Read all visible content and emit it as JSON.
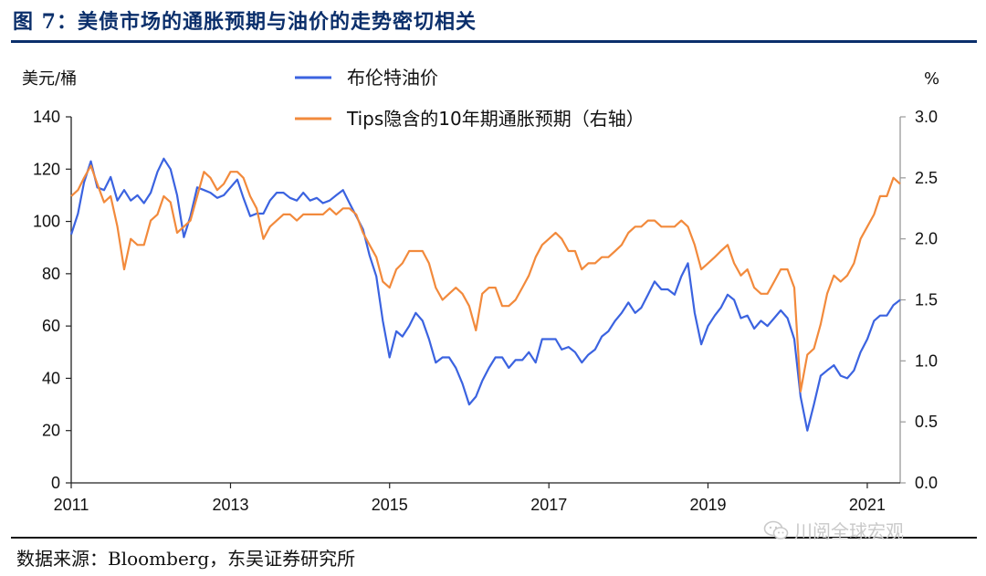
{
  "figure": {
    "title": "图 7：美债市场的通胀预期与油价的走势密切相关",
    "source": "数据来源：Bloomberg，东吴证券研究所",
    "watermark": "川阅全球宏观",
    "watermark_icon": "wechat-icon"
  },
  "chart_data": {
    "type": "line",
    "left_unit": "美元/桶",
    "right_unit": "%",
    "x_ticks": [
      "2011",
      "2013",
      "2015",
      "2017",
      "2019",
      "2021"
    ],
    "x_range": [
      "2011-01-01",
      "2021-06-01"
    ],
    "y_left": {
      "ticks": [
        "0",
        "20",
        "40",
        "60",
        "80",
        "100",
        "120",
        "140"
      ],
      "range": [
        0,
        140
      ]
    },
    "y_right": {
      "ticks": [
        "0.0",
        "0.5",
        "1.0",
        "1.5",
        "2.0",
        "2.5",
        "3.0"
      ],
      "range": [
        0,
        3.0
      ]
    },
    "grid": false,
    "legend_position": "top-center",
    "series": [
      {
        "name": "布伦特油价",
        "axis": "left",
        "color": "#3b63e0",
        "points": [
          [
            "2011-01-01",
            95
          ],
          [
            "2011-02-01",
            103
          ],
          [
            "2011-03-01",
            115
          ],
          [
            "2011-04-01",
            123
          ],
          [
            "2011-05-01",
            113
          ],
          [
            "2011-06-01",
            112
          ],
          [
            "2011-07-01",
            117
          ],
          [
            "2011-08-01",
            108
          ],
          [
            "2011-09-01",
            112
          ],
          [
            "2011-10-01",
            108
          ],
          [
            "2011-11-01",
            110
          ],
          [
            "2011-12-01",
            107
          ],
          [
            "2012-01-01",
            111
          ],
          [
            "2012-02-01",
            119
          ],
          [
            "2012-03-01",
            124
          ],
          [
            "2012-04-01",
            120
          ],
          [
            "2012-05-01",
            110
          ],
          [
            "2012-06-01",
            94
          ],
          [
            "2012-07-01",
            102
          ],
          [
            "2012-08-01",
            113
          ],
          [
            "2012-09-01",
            112
          ],
          [
            "2012-10-01",
            111
          ],
          [
            "2012-11-01",
            109
          ],
          [
            "2012-12-01",
            110
          ],
          [
            "2013-01-01",
            113
          ],
          [
            "2013-02-01",
            116
          ],
          [
            "2013-03-01",
            109
          ],
          [
            "2013-04-01",
            102
          ],
          [
            "2013-05-01",
            103
          ],
          [
            "2013-06-01",
            103
          ],
          [
            "2013-07-01",
            108
          ],
          [
            "2013-08-01",
            111
          ],
          [
            "2013-09-01",
            111
          ],
          [
            "2013-10-01",
            109
          ],
          [
            "2013-11-01",
            108
          ],
          [
            "2013-12-01",
            111
          ],
          [
            "2014-01-01",
            108
          ],
          [
            "2014-02-01",
            109
          ],
          [
            "2014-03-01",
            107
          ],
          [
            "2014-04-01",
            108
          ],
          [
            "2014-05-01",
            110
          ],
          [
            "2014-06-01",
            112
          ],
          [
            "2014-07-01",
            107
          ],
          [
            "2014-08-01",
            102
          ],
          [
            "2014-09-01",
            97
          ],
          [
            "2014-10-01",
            87
          ],
          [
            "2014-11-01",
            79
          ],
          [
            "2014-12-01",
            62
          ],
          [
            "2015-01-01",
            48
          ],
          [
            "2015-02-01",
            58
          ],
          [
            "2015-03-01",
            56
          ],
          [
            "2015-04-01",
            60
          ],
          [
            "2015-05-01",
            65
          ],
          [
            "2015-06-01",
            62
          ],
          [
            "2015-07-01",
            55
          ],
          [
            "2015-08-01",
            46
          ],
          [
            "2015-09-01",
            48
          ],
          [
            "2015-10-01",
            48
          ],
          [
            "2015-11-01",
            44
          ],
          [
            "2015-12-01",
            38
          ],
          [
            "2016-01-01",
            30
          ],
          [
            "2016-02-01",
            33
          ],
          [
            "2016-03-01",
            39
          ],
          [
            "2016-04-01",
            44
          ],
          [
            "2016-05-01",
            48
          ],
          [
            "2016-06-01",
            48
          ],
          [
            "2016-07-01",
            44
          ],
          [
            "2016-08-01",
            47
          ],
          [
            "2016-09-01",
            47
          ],
          [
            "2016-10-01",
            50
          ],
          [
            "2016-11-01",
            46
          ],
          [
            "2016-12-01",
            55
          ],
          [
            "2017-01-01",
            55
          ],
          [
            "2017-02-01",
            55
          ],
          [
            "2017-03-01",
            51
          ],
          [
            "2017-04-01",
            52
          ],
          [
            "2017-05-01",
            50
          ],
          [
            "2017-06-01",
            46
          ],
          [
            "2017-07-01",
            49
          ],
          [
            "2017-08-01",
            51
          ],
          [
            "2017-09-01",
            56
          ],
          [
            "2017-10-01",
            58
          ],
          [
            "2017-11-01",
            62
          ],
          [
            "2017-12-01",
            65
          ],
          [
            "2018-01-01",
            69
          ],
          [
            "2018-02-01",
            65
          ],
          [
            "2018-03-01",
            67
          ],
          [
            "2018-04-01",
            72
          ],
          [
            "2018-05-01",
            77
          ],
          [
            "2018-06-01",
            74
          ],
          [
            "2018-07-01",
            74
          ],
          [
            "2018-08-01",
            72
          ],
          [
            "2018-09-01",
            79
          ],
          [
            "2018-10-01",
            84
          ],
          [
            "2018-11-01",
            65
          ],
          [
            "2018-12-01",
            53
          ],
          [
            "2019-01-01",
            60
          ],
          [
            "2019-02-01",
            64
          ],
          [
            "2019-03-01",
            67
          ],
          [
            "2019-04-01",
            72
          ],
          [
            "2019-05-01",
            70
          ],
          [
            "2019-06-01",
            63
          ],
          [
            "2019-07-01",
            64
          ],
          [
            "2019-08-01",
            59
          ],
          [
            "2019-09-01",
            62
          ],
          [
            "2019-10-01",
            60
          ],
          [
            "2019-11-01",
            63
          ],
          [
            "2019-12-01",
            66
          ],
          [
            "2020-01-01",
            63
          ],
          [
            "2020-02-01",
            55
          ],
          [
            "2020-03-01",
            33
          ],
          [
            "2020-04-01",
            20
          ],
          [
            "2020-05-01",
            30
          ],
          [
            "2020-06-01",
            41
          ],
          [
            "2020-07-01",
            43
          ],
          [
            "2020-08-01",
            45
          ],
          [
            "2020-09-01",
            41
          ],
          [
            "2020-10-01",
            40
          ],
          [
            "2020-11-01",
            43
          ],
          [
            "2020-12-01",
            50
          ],
          [
            "2021-01-01",
            55
          ],
          [
            "2021-02-01",
            62
          ],
          [
            "2021-03-01",
            64
          ],
          [
            "2021-04-01",
            64
          ],
          [
            "2021-05-01",
            68
          ],
          [
            "2021-06-01",
            70
          ]
        ]
      },
      {
        "name": "Tips隐含的10年期通胀预期（右轴）",
        "axis": "right",
        "color": "#f28a3c",
        "points": [
          [
            "2011-01-01",
            2.35
          ],
          [
            "2011-02-01",
            2.4
          ],
          [
            "2011-03-01",
            2.5
          ],
          [
            "2011-04-01",
            2.6
          ],
          [
            "2011-05-01",
            2.45
          ],
          [
            "2011-06-01",
            2.3
          ],
          [
            "2011-07-01",
            2.35
          ],
          [
            "2011-08-01",
            2.1
          ],
          [
            "2011-09-01",
            1.75
          ],
          [
            "2011-10-01",
            2.0
          ],
          [
            "2011-11-01",
            1.95
          ],
          [
            "2011-12-01",
            1.95
          ],
          [
            "2012-01-01",
            2.15
          ],
          [
            "2012-02-01",
            2.2
          ],
          [
            "2012-03-01",
            2.35
          ],
          [
            "2012-04-01",
            2.3
          ],
          [
            "2012-05-01",
            2.05
          ],
          [
            "2012-06-01",
            2.1
          ],
          [
            "2012-07-01",
            2.15
          ],
          [
            "2012-08-01",
            2.35
          ],
          [
            "2012-09-01",
            2.55
          ],
          [
            "2012-10-01",
            2.5
          ],
          [
            "2012-11-01",
            2.4
          ],
          [
            "2012-12-01",
            2.45
          ],
          [
            "2013-01-01",
            2.55
          ],
          [
            "2013-02-01",
            2.55
          ],
          [
            "2013-03-01",
            2.5
          ],
          [
            "2013-04-01",
            2.35
          ],
          [
            "2013-05-01",
            2.25
          ],
          [
            "2013-06-01",
            2.0
          ],
          [
            "2013-07-01",
            2.1
          ],
          [
            "2013-08-01",
            2.15
          ],
          [
            "2013-09-01",
            2.2
          ],
          [
            "2013-10-01",
            2.2
          ],
          [
            "2013-11-01",
            2.15
          ],
          [
            "2013-12-01",
            2.2
          ],
          [
            "2014-01-01",
            2.2
          ],
          [
            "2014-02-01",
            2.2
          ],
          [
            "2014-03-01",
            2.2
          ],
          [
            "2014-04-01",
            2.25
          ],
          [
            "2014-05-01",
            2.2
          ],
          [
            "2014-06-01",
            2.25
          ],
          [
            "2014-07-01",
            2.25
          ],
          [
            "2014-08-01",
            2.2
          ],
          [
            "2014-09-01",
            2.05
          ],
          [
            "2014-10-01",
            1.95
          ],
          [
            "2014-11-01",
            1.85
          ],
          [
            "2014-12-01",
            1.65
          ],
          [
            "2015-01-01",
            1.6
          ],
          [
            "2015-02-01",
            1.75
          ],
          [
            "2015-03-01",
            1.8
          ],
          [
            "2015-04-01",
            1.9
          ],
          [
            "2015-05-01",
            1.9
          ],
          [
            "2015-06-01",
            1.9
          ],
          [
            "2015-07-01",
            1.8
          ],
          [
            "2015-08-01",
            1.6
          ],
          [
            "2015-09-01",
            1.5
          ],
          [
            "2015-10-01",
            1.55
          ],
          [
            "2015-11-01",
            1.6
          ],
          [
            "2015-12-01",
            1.55
          ],
          [
            "2016-01-01",
            1.45
          ],
          [
            "2016-02-01",
            1.25
          ],
          [
            "2016-03-01",
            1.55
          ],
          [
            "2016-04-01",
            1.6
          ],
          [
            "2016-05-01",
            1.6
          ],
          [
            "2016-06-01",
            1.45
          ],
          [
            "2016-07-01",
            1.45
          ],
          [
            "2016-08-01",
            1.5
          ],
          [
            "2016-09-01",
            1.6
          ],
          [
            "2016-10-01",
            1.7
          ],
          [
            "2016-11-01",
            1.85
          ],
          [
            "2016-12-01",
            1.95
          ],
          [
            "2017-01-01",
            2.0
          ],
          [
            "2017-02-01",
            2.05
          ],
          [
            "2017-03-01",
            2.0
          ],
          [
            "2017-04-01",
            1.9
          ],
          [
            "2017-05-01",
            1.9
          ],
          [
            "2017-06-01",
            1.75
          ],
          [
            "2017-07-01",
            1.8
          ],
          [
            "2017-08-01",
            1.8
          ],
          [
            "2017-09-01",
            1.85
          ],
          [
            "2017-10-01",
            1.85
          ],
          [
            "2017-11-01",
            1.9
          ],
          [
            "2017-12-01",
            1.95
          ],
          [
            "2018-01-01",
            2.05
          ],
          [
            "2018-02-01",
            2.1
          ],
          [
            "2018-03-01",
            2.1
          ],
          [
            "2018-04-01",
            2.15
          ],
          [
            "2018-05-01",
            2.15
          ],
          [
            "2018-06-01",
            2.1
          ],
          [
            "2018-07-01",
            2.1
          ],
          [
            "2018-08-01",
            2.1
          ],
          [
            "2018-09-01",
            2.15
          ],
          [
            "2018-10-01",
            2.1
          ],
          [
            "2018-11-01",
            1.95
          ],
          [
            "2018-12-01",
            1.75
          ],
          [
            "2019-01-01",
            1.8
          ],
          [
            "2019-02-01",
            1.85
          ],
          [
            "2019-03-01",
            1.9
          ],
          [
            "2019-04-01",
            1.95
          ],
          [
            "2019-05-01",
            1.8
          ],
          [
            "2019-06-01",
            1.7
          ],
          [
            "2019-07-01",
            1.75
          ],
          [
            "2019-08-01",
            1.6
          ],
          [
            "2019-09-01",
            1.55
          ],
          [
            "2019-10-01",
            1.55
          ],
          [
            "2019-11-01",
            1.65
          ],
          [
            "2019-12-01",
            1.75
          ],
          [
            "2020-01-01",
            1.75
          ],
          [
            "2020-02-01",
            1.6
          ],
          [
            "2020-03-01",
            0.75
          ],
          [
            "2020-04-01",
            1.05
          ],
          [
            "2020-05-01",
            1.1
          ],
          [
            "2020-06-01",
            1.3
          ],
          [
            "2020-07-01",
            1.55
          ],
          [
            "2020-08-01",
            1.7
          ],
          [
            "2020-09-01",
            1.65
          ],
          [
            "2020-10-01",
            1.7
          ],
          [
            "2020-11-01",
            1.8
          ],
          [
            "2020-12-01",
            2.0
          ],
          [
            "2021-01-01",
            2.1
          ],
          [
            "2021-02-01",
            2.2
          ],
          [
            "2021-03-01",
            2.35
          ],
          [
            "2021-04-01",
            2.35
          ],
          [
            "2021-05-01",
            2.5
          ],
          [
            "2021-06-01",
            2.45
          ]
        ]
      }
    ]
  }
}
